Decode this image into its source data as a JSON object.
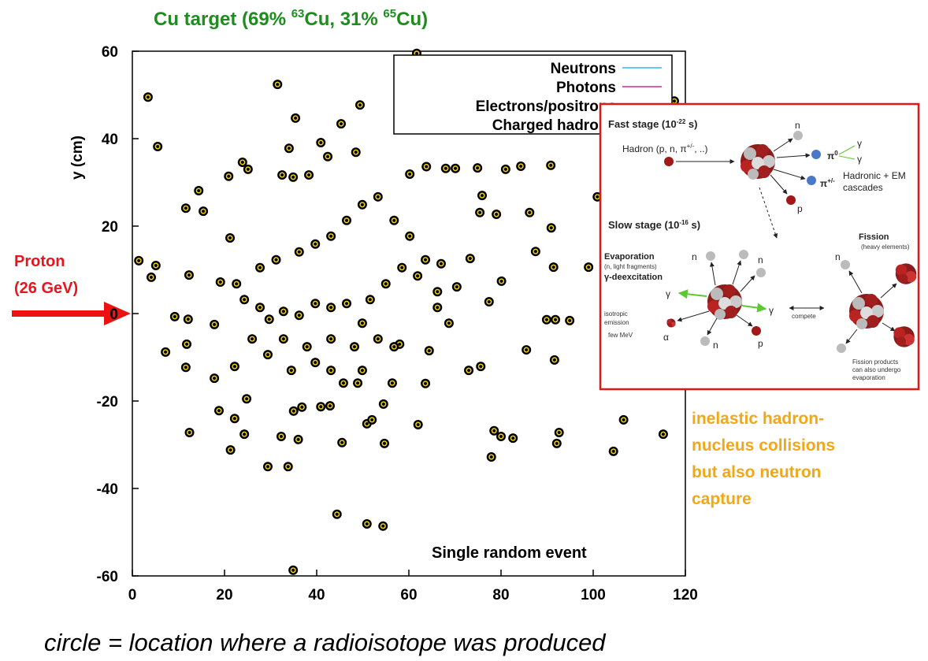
{
  "chart_data": {
    "type": "scatter",
    "title": [
      "Cu target (69% ",
      "63",
      "Cu, 31% ",
      "65",
      "Cu)"
    ],
    "y_label": "y (cm)",
    "xlim": [
      0,
      120
    ],
    "ylim": [
      -60,
      60
    ],
    "xticks": [
      0,
      20,
      40,
      60,
      80,
      100,
      120
    ],
    "yticks": [
      -60,
      -40,
      -20,
      0,
      20,
      40,
      60
    ],
    "legend": [
      {
        "name": "Neutrons",
        "color": "#33b9e6"
      },
      {
        "name": "Photons",
        "color": "#d02c8c"
      },
      {
        "name": "Electrons/positrons"
      },
      {
        "name": "Charged hadrons"
      }
    ],
    "x": [
      3.4,
      5.5,
      31.5,
      35.4,
      49.4,
      45.3,
      40.9,
      48.5,
      34,
      23.9,
      25.1,
      20.9,
      32.5,
      34.9,
      38.3,
      42.4,
      60.2,
      63.8,
      68,
      70.1,
      74.9,
      81,
      84.3,
      90.8,
      90.9,
      117.6,
      100.9,
      90.9,
      86.2,
      75.4,
      79,
      75.9,
      14.4,
      15.4,
      11.6,
      21.2,
      12.3,
      1.4,
      5.1,
      4.1,
      9.2,
      12.1,
      11.8,
      11.6,
      7.2,
      17.8,
      19.1,
      17.8,
      22.2,
      18.8,
      21.3,
      12.4,
      22.2,
      24.3,
      24.8,
      29.4,
      33.8,
      32.3,
      36,
      35,
      36.8,
      40.9,
      42.9,
      45.8,
      45.5,
      48.9,
      50.9,
      52,
      54.7,
      54.5,
      56.4,
      58,
      63.6,
      62,
      44.4,
      50.9,
      54.4,
      34.9,
      61.7,
      73,
      75.6,
      85.5,
      91.6,
      91.8,
      94.9,
      89.9,
      91.4,
      87.5,
      99,
      80.1,
      73.3,
      70.4,
      77.4,
      92.6,
      92.1,
      82.6,
      78.5,
      80,
      77.9,
      104.4,
      106.6,
      115.2,
      39.7,
      43.1,
      46.5,
      36.2,
      32.8,
      29.7,
      27.7,
      24.3,
      22.6,
      27.7,
      31.2,
      36.2,
      39.7,
      43.1,
      46.5,
      49.9,
      53.3,
      56.8,
      60.2,
      58.5,
      55,
      51.6,
      49.9,
      53.3,
      56.8,
      48.2,
      43.1,
      37.9,
      32.8,
      29.4,
      26,
      39.7,
      34.5,
      43.1,
      49.9,
      66.2,
      67,
      63.6,
      61.9,
      66.2,
      68.7,
      64.4
    ],
    "values": [
      49.5,
      38.2,
      52.4,
      44.7,
      47.7,
      43.4,
      39.1,
      36.9,
      37.8,
      34.6,
      33,
      31.4,
      31.7,
      31.2,
      31.7,
      35.9,
      31.9,
      33.6,
      33.2,
      33.2,
      33.3,
      33,
      33.7,
      33.9,
      45,
      48.6,
      26.7,
      19.6,
      23.1,
      23.1,
      22.7,
      27,
      28.1,
      23.4,
      24.1,
      17.3,
      8.8,
      12.1,
      11,
      8.3,
      -0.7,
      -1.3,
      -7,
      -12.3,
      -8.8,
      -2.5,
      7.2,
      -14.8,
      -12.1,
      -22.2,
      -31.2,
      -27.2,
      -24,
      -27.6,
      -19.5,
      -35,
      -35,
      -28.1,
      -28.8,
      -22.3,
      -21.4,
      -21.3,
      -21.1,
      -15.9,
      -29.5,
      -15.9,
      -25.2,
      -24.3,
      -29.7,
      -20.7,
      -15.9,
      -7,
      -16,
      -25.4,
      -45.9,
      -48.1,
      -48.6,
      -58.7,
      59.5,
      -13,
      -12.1,
      -8.3,
      -10.6,
      -1.4,
      -1.6,
      -1.4,
      10.6,
      14.2,
      10.6,
      7.4,
      12.6,
      6.1,
      2.7,
      -27.2,
      -29.7,
      -28.5,
      -26.8,
      -28.1,
      -32.8,
      -31.5,
      -24.3,
      -27.6,
      2.3,
      1.4,
      2.3,
      -0.4,
      0.5,
      -1.3,
      1.4,
      3.2,
      6.8,
      10.5,
      12.3,
      14.1,
      15.9,
      17.7,
      21.3,
      24.9,
      26.7,
      21.3,
      17.7,
      10.5,
      6.8,
      3.2,
      -2.2,
      -5.8,
      -7.6,
      -7.6,
      -5.8,
      -7.6,
      -5.8,
      -9.4,
      -5.8,
      -11.2,
      -13,
      -13,
      -13,
      5,
      11.4,
      12.3,
      8.6,
      1.4,
      -2.2,
      -8.5
    ],
    "annotations": {
      "beam": [
        "Proton",
        "(26 GeV)"
      ],
      "event": "Single random event",
      "process": [
        "inelastic hadron-",
        "nucleus collisions",
        "but also neutron",
        "capture"
      ],
      "caption": "circle = location where a radioisotope was produced"
    }
  },
  "inset": {
    "fast": [
      "Fast stage (10",
      "-22",
      " s)"
    ],
    "hadron": [
      "Hadron (p, n, π",
      "+/-",
      ", ..)"
    ],
    "fast_n": "n",
    "pi0": [
      "π",
      "0"
    ],
    "gammas": [
      "γ",
      "γ"
    ],
    "pipm": [
      "π",
      "+/-"
    ],
    "cascades": [
      "Hadronic + EM",
      "cascades"
    ],
    "fast_p": "p",
    "slow": [
      "Slow stage (10",
      "-16",
      " s)"
    ],
    "evaporation": [
      "Evaporation",
      "(n, light fragments)",
      "γ-deexcitation"
    ],
    "slow_n": [
      "n",
      "n",
      "n",
      "n"
    ],
    "slow_gammas": [
      "γ",
      "γ"
    ],
    "isotropic": [
      "isotropic",
      "emission",
      "few MeV"
    ],
    "alpha": "α",
    "slow_p": "p",
    "compete": "compete",
    "fission": [
      "Fission",
      "(heavy elements)"
    ],
    "products": [
      "Fission products",
      "can also undergo",
      "evaporation"
    ]
  }
}
